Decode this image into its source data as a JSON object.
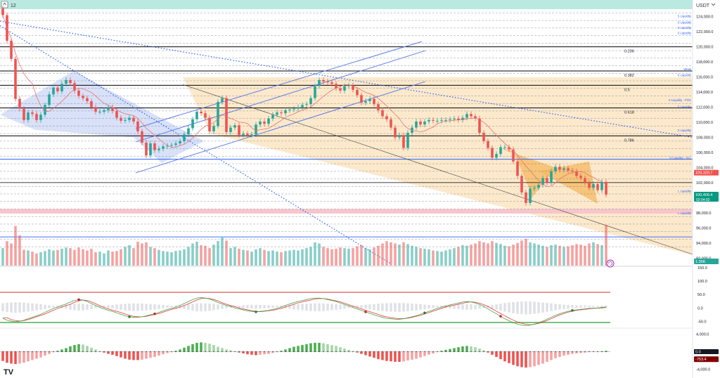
{
  "header": {
    "interval_label": "12",
    "currency": "USDT"
  },
  "branding": {
    "logo_text": "TV"
  },
  "price_axis": {
    "ticks": [
      "124,000.0",
      "122,000.0",
      "120,000.0",
      "118,000.0",
      "116,000.0",
      "114,000.0",
      "112,000.0",
      "110,000.0",
      "108,000.0",
      "106,000.0",
      "104,000.0",
      "102,000.0",
      "100,000.0",
      "98,000.0",
      "96,000.0",
      "94,000.0",
      "92,000.0"
    ],
    "sma_badge": "103,320.7",
    "price_badge": "100,409.4",
    "countdown": "02:04:02",
    "volume_badge": "1.35K"
  },
  "fib_levels": [
    {
      "label": "0.236",
      "price": 120000
    },
    {
      "label": "0.382",
      "price": 116800
    },
    {
      "label": "0.5",
      "price": 114900
    },
    {
      "label": "0.618",
      "price": 111900
    },
    {
      "label": "0.786",
      "price": 108200
    }
  ],
  "liquidity_labels": [
    {
      "label": "S Liquidity",
      "price": 124100
    },
    {
      "label": "S Liquidity",
      "price": 123300
    },
    {
      "label": "S Liquidity",
      "price": 122600
    },
    {
      "label": "S Liquidity",
      "price": 121900
    },
    {
      "label": "Weak",
      "price": 117100
    },
    {
      "label": "S Liquidity",
      "price": 116300
    },
    {
      "label": "S Liquidity - POC",
      "price": 113000
    },
    {
      "label": "S Liquidity",
      "price": 112100
    },
    {
      "label": "S Liquidity",
      "price": 109000
    },
    {
      "label": "S Liquidity - VAL",
      "price": 105300
    },
    {
      "label": "L Liquidity",
      "price": 100900
    },
    {
      "label": "L Liquidity",
      "price": 98000
    }
  ],
  "oscillator_axis": {
    "ticks": [
      "150.0",
      "100.0",
      "50.0",
      "0.0",
      "-50.0"
    ]
  },
  "macd_axis": {
    "ticks": [
      "4,000.0",
      "0.0",
      "-4,000.0"
    ],
    "zero_badge": "0.0",
    "value_badge": "-753.4"
  },
  "colors": {
    "up": "#26a69a",
    "down": "#ef5350",
    "fib": "#000000",
    "trend": "#2962ff",
    "channel": "#5b7ee8",
    "header_bg": "#b9e9e0",
    "orange_zone": "#fbe3bf",
    "blue_zone": "#c7d4f3",
    "pink_band": "#f7c5cc",
    "sma": "#e57373",
    "green_line": "#4caf50"
  },
  "chart_data": {
    "type": "candlestick",
    "symbol_quote": "USDT",
    "price_range": [
      91000,
      125000
    ],
    "oscillator_range": [
      -70,
      150
    ],
    "macd_range": [
      -5000,
      5000
    ],
    "closes": [
      124200,
      120800,
      118400,
      113100,
      111800,
      110300,
      111300,
      111100,
      110300,
      111000,
      112300,
      113700,
      114600,
      114100,
      115100,
      115600,
      115200,
      114200,
      113500,
      113200,
      112800,
      112000,
      111400,
      111400,
      111600,
      112000,
      111500,
      110600,
      110200,
      110300,
      110600,
      110100,
      108800,
      107300,
      105600,
      107200,
      106300,
      106500,
      106800,
      106900,
      107000,
      107200,
      107500,
      108400,
      109200,
      110400,
      111400,
      111200,
      110600,
      108800,
      109500,
      112700,
      113200,
      108700,
      109300,
      109600,
      108300,
      108500,
      108300,
      108400,
      109700,
      110100,
      109800,
      110500,
      111000,
      111300,
      111200,
      111600,
      111700,
      111800,
      112000,
      112300,
      112400,
      113200,
      114800,
      115600,
      115400,
      115300,
      115100,
      114500,
      114200,
      114800,
      114900,
      114300,
      113600,
      112600,
      112800,
      113100,
      112400,
      111600,
      110800,
      110400,
      109300,
      108000,
      108300,
      106600,
      108600,
      109300,
      110100,
      109700,
      110100,
      110300,
      110200,
      110200,
      110300,
      110300,
      110400,
      110500,
      110300,
      110600,
      111100,
      110800,
      110500,
      108600,
      107500,
      106600,
      105300,
      105800,
      106700,
      106700,
      106400,
      104800,
      102900,
      100700,
      99300,
      101200,
      101300,
      101700,
      102600,
      102000,
      103500,
      104100,
      103700,
      103900,
      103600,
      103500,
      102900,
      102600,
      102000,
      101300,
      101800,
      101000,
      102100,
      100400
    ],
    "volumes": [
      300,
      420,
      380,
      680,
      520,
      270,
      260,
      240,
      210,
      230,
      250,
      280,
      260,
      270,
      290,
      310,
      300,
      270,
      310,
      280,
      260,
      290,
      230,
      240,
      210,
      260,
      240,
      250,
      280,
      320,
      350,
      300,
      410,
      380,
      400,
      320,
      300,
      270,
      250,
      240,
      230,
      250,
      260,
      280,
      320,
      380,
      410,
      350,
      340,
      300,
      360,
      420,
      480,
      430,
      300,
      320,
      290,
      270,
      260,
      240,
      280,
      300,
      270,
      250,
      260,
      240,
      230,
      250,
      260,
      270,
      260,
      280,
      300,
      320,
      400,
      380,
      320,
      300,
      280,
      290,
      310,
      300,
      290,
      300,
      330,
      350,
      300,
      280,
      310,
      340,
      380,
      420,
      400,
      380,
      360,
      400,
      370,
      340,
      320,
      300,
      290,
      280,
      260,
      250,
      240,
      260,
      280,
      300,
      320,
      350,
      340,
      360,
      380,
      420,
      400,
      380,
      420,
      390,
      370,
      340,
      330,
      360,
      390,
      430,
      460,
      400,
      380,
      360,
      340,
      320,
      350,
      360,
      340,
      320,
      330,
      350,
      370,
      360,
      340,
      380,
      400,
      370,
      350,
      1350
    ],
    "macd_hist": [
      -2100,
      -2500,
      -2700,
      -2800,
      -2700,
      -2500,
      -2200,
      -1900,
      -1600,
      -1300,
      -900,
      -500,
      -100,
      200,
      500,
      800,
      1200,
      1500,
      1700,
      1600,
      1300,
      900,
      500,
      100,
      -200,
      -500,
      -700,
      -1000,
      -1300,
      -1600,
      -1800,
      -1900,
      -1900,
      -1800,
      -1600,
      -1400,
      -1200,
      -900,
      -600,
      -300,
      -100,
      200,
      500,
      900,
      1300,
      1700,
      2000,
      2100,
      2000,
      1800,
      1500,
      1100,
      800,
      500,
      300,
      0,
      -200,
      -400,
      -600,
      -700,
      -800,
      -700,
      -600,
      -500,
      -300,
      -100,
      200,
      500,
      800,
      1100,
      1300,
      1500,
      1700,
      1900,
      2000,
      2000,
      1900,
      1700,
      1500,
      1300,
      1000,
      700,
      400,
      100,
      -200,
      -500,
      -800,
      -1100,
      -1400,
      -1700,
      -1900,
      -2100,
      -2200,
      -2300,
      -2300,
      -2200,
      -2000,
      -1800,
      -1600,
      -1300,
      -1000,
      -700,
      -400,
      -100,
      200,
      400,
      600,
      800,
      1000,
      1200,
      1300,
      1200,
      1000,
      700,
      300,
      -200,
      -700,
      -1200,
      -1700,
      -2200,
      -2600,
      -3000,
      -3300,
      -3500,
      -3600,
      -3500,
      -3300,
      -3000,
      -2700,
      -2300,
      -1900,
      -1500,
      -1200,
      -900,
      -700,
      -500,
      -400,
      -300,
      -200,
      -100,
      -50,
      -20,
      100,
      200
    ]
  }
}
